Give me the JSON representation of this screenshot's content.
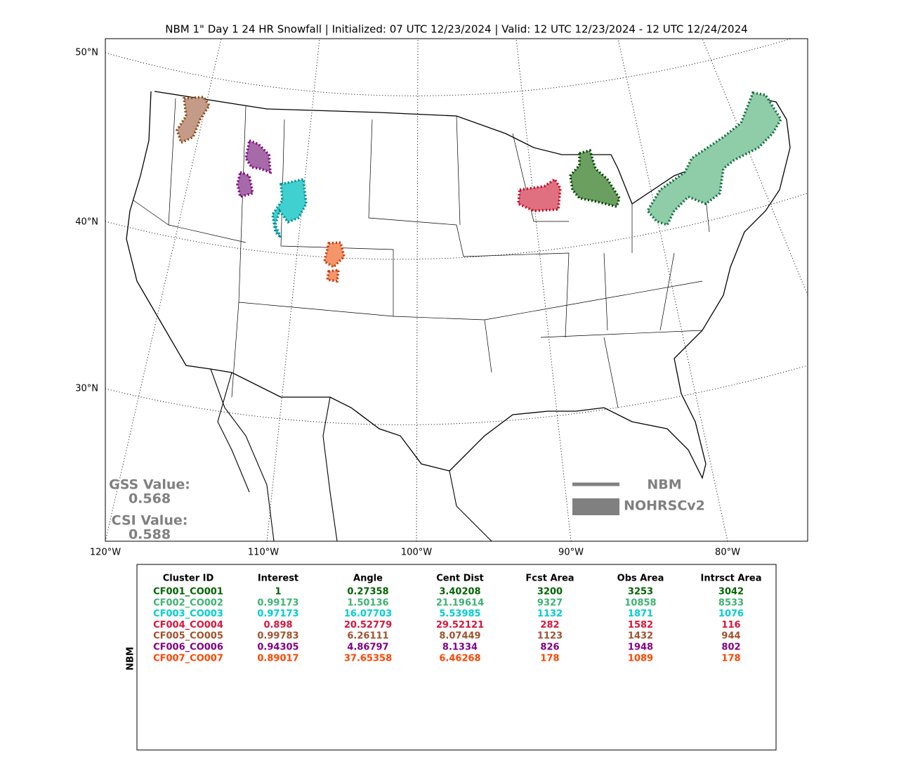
{
  "header": {
    "title": "NBM 1\" Day 1 24 HR Snowfall | Initialized: 07 UTC 12/23/2024 | Valid: 12 UTC 12/23/2024 - 12 UTC 12/24/2024"
  },
  "map": {
    "lat_labels": [
      "50°N",
      "40°N",
      "30°N"
    ],
    "lon_labels": [
      "120°W",
      "110°W",
      "100°W",
      "90°W",
      "80°W"
    ]
  },
  "scores": {
    "gss_label": "GSS Value:",
    "gss_value": "0.568",
    "csi_label": "CSI Value:",
    "csi_value": "0.588"
  },
  "legend": {
    "items": [
      "NBM",
      "NOHRSCv2"
    ]
  },
  "table": {
    "side_label": "NBM",
    "columns": [
      "Cluster ID",
      "Interest",
      "Angle",
      "Cent Dist",
      "Fcst Area",
      "Obs Area",
      "Intrsct Area"
    ],
    "rows": [
      {
        "color": "#006400",
        "cells": [
          "CF001_CO001",
          "1",
          "0.27358",
          "3.40208",
          "3200",
          "3253",
          "3042"
        ]
      },
      {
        "color": "#3cb371",
        "cells": [
          "CF002_CO002",
          "0.99173",
          "1.50136",
          "21.19614",
          "9327",
          "10858",
          "8533"
        ]
      },
      {
        "color": "#00ced1",
        "cells": [
          "CF003_CO003",
          "0.97173",
          "16.07703",
          "5.53985",
          "1132",
          "1871",
          "1076"
        ]
      },
      {
        "color": "#dc143c",
        "cells": [
          "CF004_CO004",
          "0.898",
          "20.52779",
          "29.52121",
          "282",
          "1582",
          "116"
        ]
      },
      {
        "color": "#a0522d",
        "cells": [
          "CF005_CO005",
          "0.99783",
          "6.26111",
          "8.07449",
          "1123",
          "1432",
          "944"
        ]
      },
      {
        "color": "#800080",
        "cells": [
          "CF006_CO006",
          "0.94305",
          "4.86797",
          "8.1334",
          "826",
          "1948",
          "802"
        ]
      },
      {
        "color": "#ff4500",
        "cells": [
          "CF007_CO007",
          "0.89017",
          "37.65358",
          "6.46268",
          "178",
          "1089",
          "178"
        ]
      }
    ]
  }
}
